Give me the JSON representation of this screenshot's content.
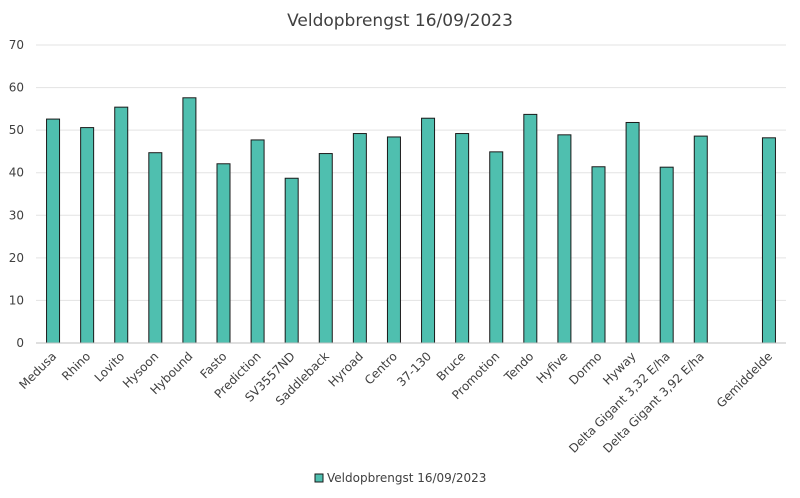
{
  "chart_data": {
    "type": "bar",
    "title": "Veldopbrengst 16/09/2023",
    "xlabel": "",
    "ylabel": "",
    "ylim": [
      0,
      70
    ],
    "yticks": [
      0,
      10,
      20,
      30,
      40,
      50,
      60,
      70
    ],
    "grid": true,
    "legend_position": "bottom",
    "bar_color": "#4fbfaf",
    "categories": [
      "Medusa",
      "Rhino",
      "Lovito",
      "Hysoon",
      "Hybound",
      "Fasto",
      "Prediction",
      "SV3557ND",
      "Saddleback",
      "Hyroad",
      "Centro",
      "37-130",
      "Bruce",
      "Promotion",
      "Tendo",
      "Hyfive",
      "Dormo",
      "Hyway",
      "Delta Gigant 3,32 E/ha",
      "Delta Gigant 3,92 E/ha",
      "",
      "Gemiddelde"
    ],
    "series": [
      {
        "name": "Veldopbrengst 16/09/2023",
        "values": [
          52.6,
          50.6,
          55.4,
          44.7,
          57.6,
          42.1,
          47.7,
          38.7,
          44.5,
          49.2,
          48.4,
          52.8,
          49.2,
          44.9,
          53.7,
          48.9,
          41.4,
          51.8,
          41.3,
          48.6,
          null,
          48.2
        ]
      }
    ]
  }
}
